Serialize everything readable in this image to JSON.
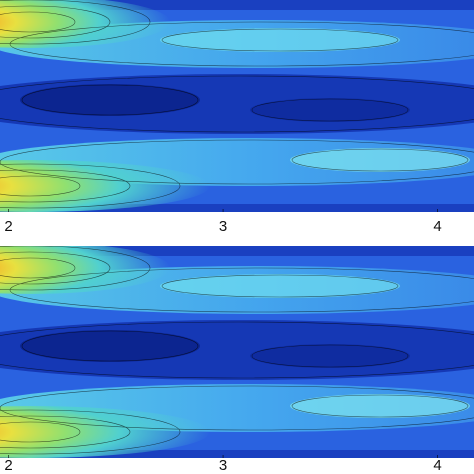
{
  "chart_data": [
    {
      "type": "contour",
      "xlim": [
        1.96,
        4.17
      ],
      "xticks": [
        2,
        3,
        4
      ]
    },
    {
      "type": "contour",
      "xlim": [
        1.96,
        4.17
      ],
      "xticks": [
        2,
        3,
        4
      ]
    }
  ]
}
